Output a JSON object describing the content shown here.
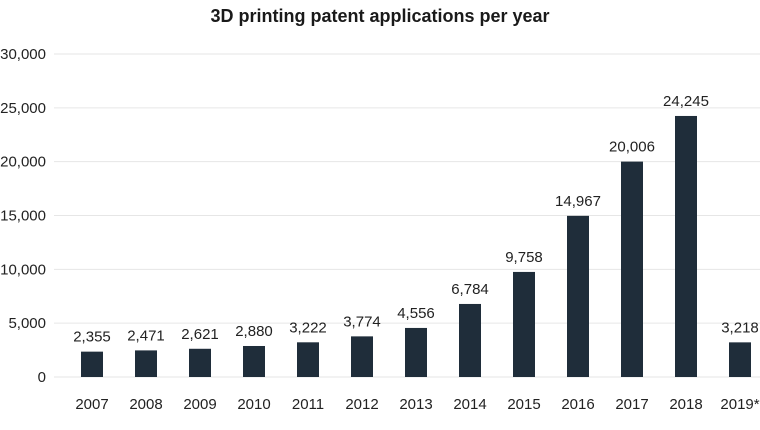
{
  "chart_data": {
    "type": "bar",
    "title": "3D printing patent applications per year",
    "xlabel": "",
    "ylabel": "",
    "categories": [
      "2007",
      "2008",
      "2009",
      "2010",
      "2011",
      "2012",
      "2013",
      "2014",
      "2015",
      "2016",
      "2017",
      "2018",
      "2019*"
    ],
    "values": [
      2355,
      2471,
      2621,
      2880,
      3222,
      3774,
      4556,
      6784,
      9758,
      14967,
      20006,
      24245,
      3218
    ],
    "value_labels": [
      "2,355",
      "2,471",
      "2,621",
      "2,880",
      "3,222",
      "3,774",
      "4,556",
      "6,784",
      "9,758",
      "14,967",
      "20,006",
      "24,245",
      "3,218"
    ],
    "ylim": [
      0,
      30000
    ],
    "yticks": [
      0,
      5000,
      10000,
      15000,
      20000,
      25000,
      30000
    ],
    "ytick_labels": [
      "0",
      "5,000",
      "10,000",
      "15,000",
      "20,000",
      "25,000",
      "30,000"
    ],
    "grid": true,
    "legend": "none",
    "colors": {
      "bar": "#1f2d3a",
      "gridline": "#e6e6e6",
      "text": "#222222"
    }
  }
}
